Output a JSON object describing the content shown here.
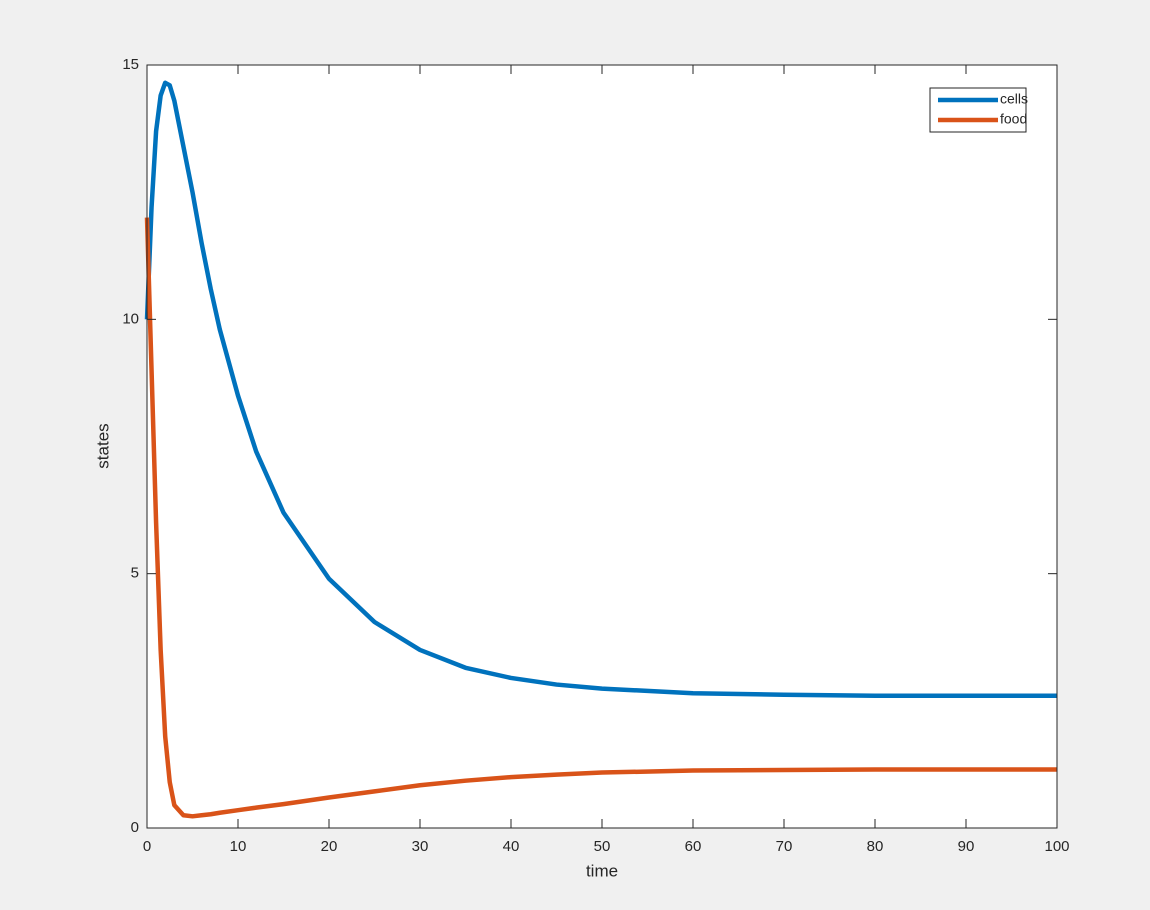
{
  "chart_data": {
    "type": "line",
    "x_label": "time",
    "y_label": "states",
    "x": [
      0,
      0.5,
      1,
      1.5,
      2,
      2.5,
      3,
      4,
      5,
      6,
      7,
      8,
      10,
      12,
      15,
      20,
      25,
      30,
      35,
      40,
      45,
      50,
      60,
      70,
      80,
      90,
      100
    ],
    "series": [
      {
        "name": "cells",
        "color": "#0072bd",
        "values": [
          10,
          12.2,
          13.7,
          14.4,
          14.65,
          14.6,
          14.3,
          13.4,
          12.5,
          11.5,
          10.6,
          9.8,
          8.5,
          7.4,
          6.2,
          4.9,
          4.05,
          3.5,
          3.15,
          2.95,
          2.82,
          2.74,
          2.65,
          2.62,
          2.6,
          2.6,
          2.6
        ]
      },
      {
        "name": "food",
        "color": "#d95319",
        "values": [
          12,
          9,
          6,
          3.5,
          1.8,
          0.9,
          0.45,
          0.25,
          0.23,
          0.25,
          0.27,
          0.3,
          0.35,
          0.4,
          0.47,
          0.6,
          0.72,
          0.84,
          0.93,
          1.0,
          1.05,
          1.09,
          1.13,
          1.14,
          1.15,
          1.15,
          1.15
        ]
      }
    ],
    "xlim": [
      0,
      100
    ],
    "xticks": [
      0,
      10,
      20,
      30,
      40,
      50,
      60,
      70,
      80,
      90,
      100
    ],
    "ylim": [
      0,
      15
    ],
    "yticks": [
      0,
      5,
      10,
      15
    ],
    "grid": false,
    "legend": "top-right"
  }
}
